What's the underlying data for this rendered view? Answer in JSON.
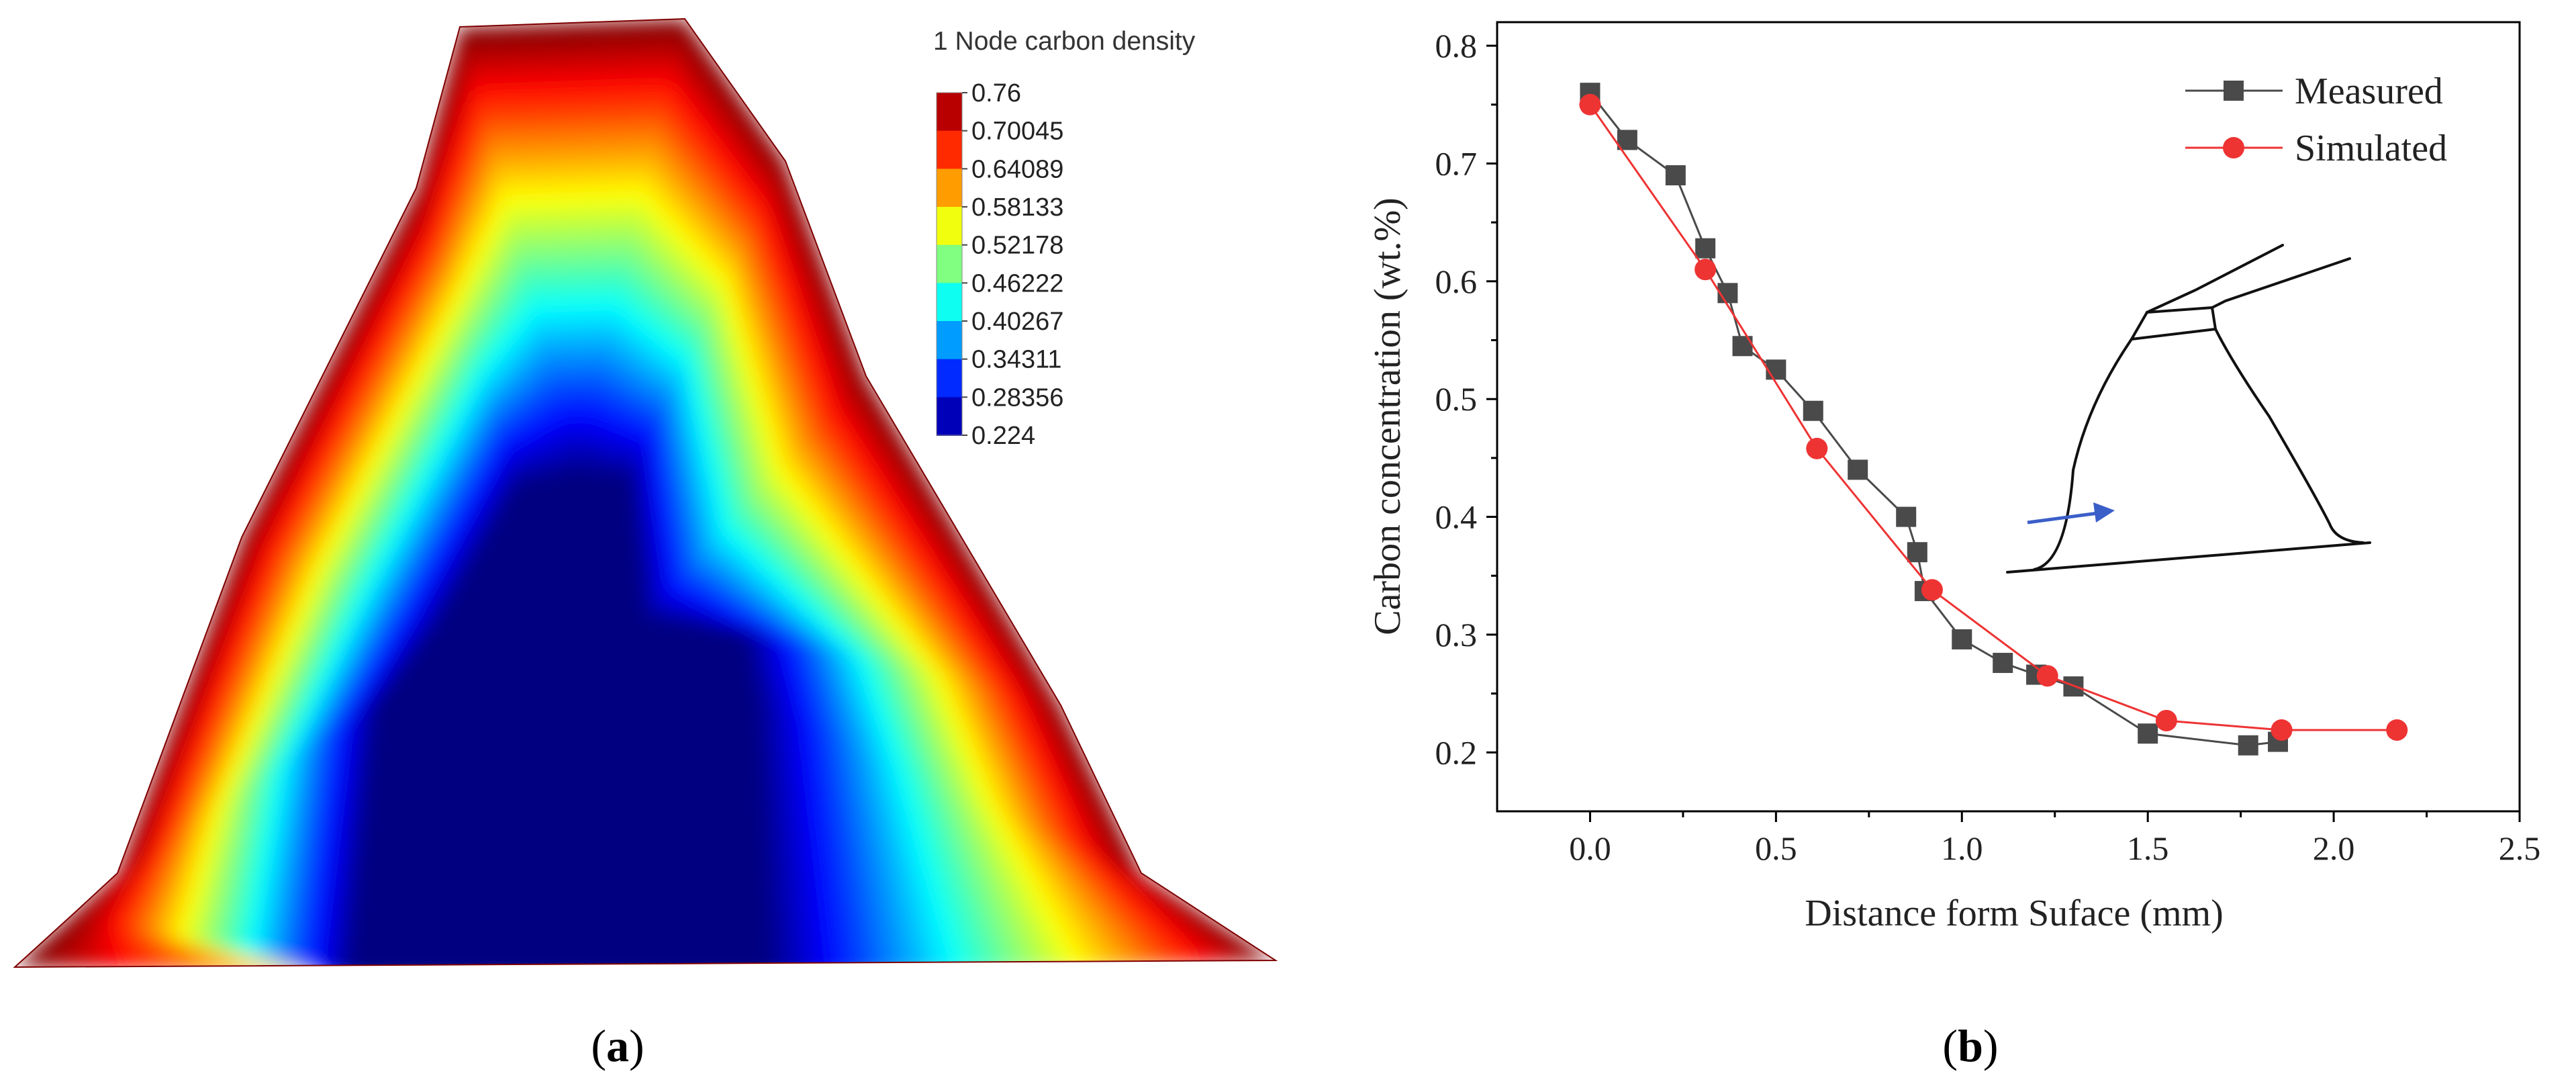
{
  "panel_a": {
    "caption_open": "(",
    "caption_letter": "a",
    "caption_close": ")",
    "legend_title": "1 Node carbon density",
    "legend_levels": [
      "0.76",
      "0.70045",
      "0.64089",
      "0.58133",
      "0.52178",
      "0.46222",
      "0.40267",
      "0.34311",
      "0.28356",
      "0.224"
    ],
    "colors": {
      "high": "#7f0000",
      "low": "#00007f"
    }
  },
  "panel_b": {
    "caption_open": "(",
    "caption_letter": "b",
    "caption_close": ")"
  },
  "chart_data": [
    {
      "type": "heatmap",
      "title": "1 Node carbon density",
      "colorbar": {
        "min": 0.224,
        "max": 0.76,
        "levels": [
          0.76,
          0.70045,
          0.64089,
          0.58133,
          0.52178,
          0.46222,
          0.40267,
          0.34311,
          0.28356,
          0.224
        ],
        "colormap": "jet"
      }
    },
    {
      "type": "line",
      "title": "",
      "xlabel": "Distance form Suface (mm)",
      "ylabel": "Carbon concentration (wt.%)",
      "xlim": [
        -0.25,
        2.5
      ],
      "ylim": [
        0.15,
        0.82
      ],
      "xticks": [
        0.0,
        0.5,
        1.0,
        1.5,
        2.0,
        2.5
      ],
      "yticks": [
        0.2,
        0.3,
        0.4,
        0.5,
        0.6,
        0.7,
        0.8
      ],
      "xtick_labels": [
        "0.0",
        "0.5",
        "1.0",
        "1.5",
        "2.0",
        "2.5"
      ],
      "ytick_labels": [
        "0.2",
        "0.3",
        "0.4",
        "0.5",
        "0.6",
        "0.7",
        "0.8"
      ],
      "legend_position": "top-right",
      "series": [
        {
          "name": "Measured",
          "marker": "square",
          "color": "#4a4a4a",
          "x": [
            0.0,
            0.1,
            0.23,
            0.31,
            0.37,
            0.41,
            0.5,
            0.6,
            0.72,
            0.85,
            0.88,
            0.9,
            1.0,
            1.11,
            1.2,
            1.3,
            1.5,
            1.77,
            1.85
          ],
          "y": [
            0.76,
            0.72,
            0.69,
            0.628,
            0.59,
            0.545,
            0.525,
            0.49,
            0.44,
            0.4,
            0.37,
            0.337,
            0.296,
            0.276,
            0.266,
            0.256,
            0.216,
            0.206,
            0.209
          ]
        },
        {
          "name": "Simulated",
          "marker": "circle",
          "color": "#ee3333",
          "x": [
            0.0,
            0.31,
            0.61,
            0.92,
            1.23,
            1.55,
            1.86,
            2.17
          ],
          "y": [
            0.75,
            0.61,
            0.458,
            0.338,
            0.265,
            0.227,
            0.219,
            0.219
          ]
        }
      ]
    }
  ]
}
